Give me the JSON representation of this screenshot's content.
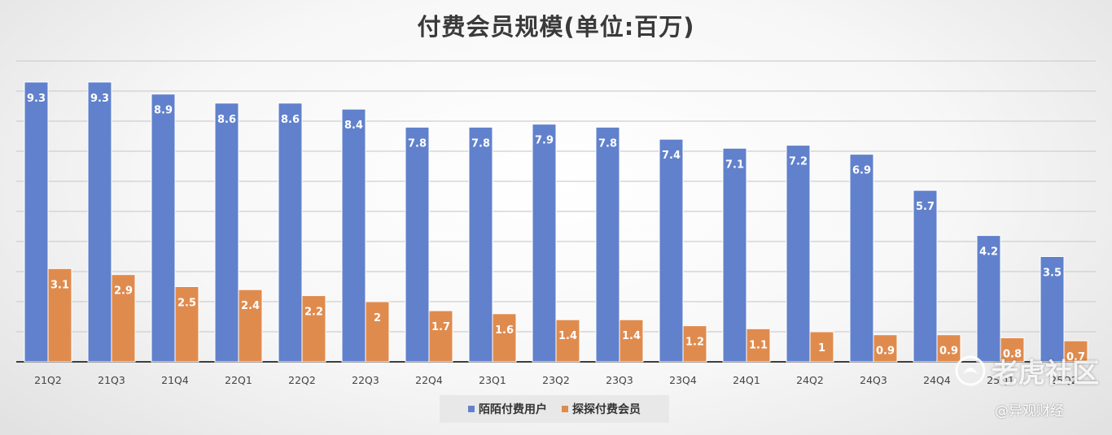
{
  "chart_data": {
    "type": "bar",
    "title": "付费会员规模(单位:百万)",
    "categories": [
      "21Q2",
      "21Q3",
      "21Q4",
      "22Q1",
      "22Q2",
      "22Q3",
      "22Q4",
      "23Q1",
      "23Q2",
      "23Q3",
      "23Q4",
      "24Q1",
      "24Q2",
      "24Q3",
      "24Q4",
      "25Q1",
      "25Q2"
    ],
    "series": [
      {
        "name": "陌陌付费用户",
        "color": "#6181cc",
        "values": [
          9.3,
          9.3,
          8.9,
          8.6,
          8.6,
          8.4,
          7.8,
          7.8,
          7.9,
          7.8,
          7.4,
          7.1,
          7.2,
          6.9,
          5.7,
          4.2,
          3.5
        ]
      },
      {
        "name": "探探付费会员",
        "color": "#e08b4e",
        "values": [
          3.1,
          2.9,
          2.5,
          2.4,
          2.2,
          2,
          1.7,
          1.6,
          1.4,
          1.4,
          1.2,
          1.1,
          1,
          0.9,
          0.9,
          0.8,
          0.7
        ]
      }
    ],
    "ylim": [
      0,
      10
    ],
    "grid": true,
    "legend": "bottom-center"
  },
  "watermark": {
    "main": "老虎社区",
    "sub": "@异观财经",
    "icon": "tiger-icon"
  }
}
